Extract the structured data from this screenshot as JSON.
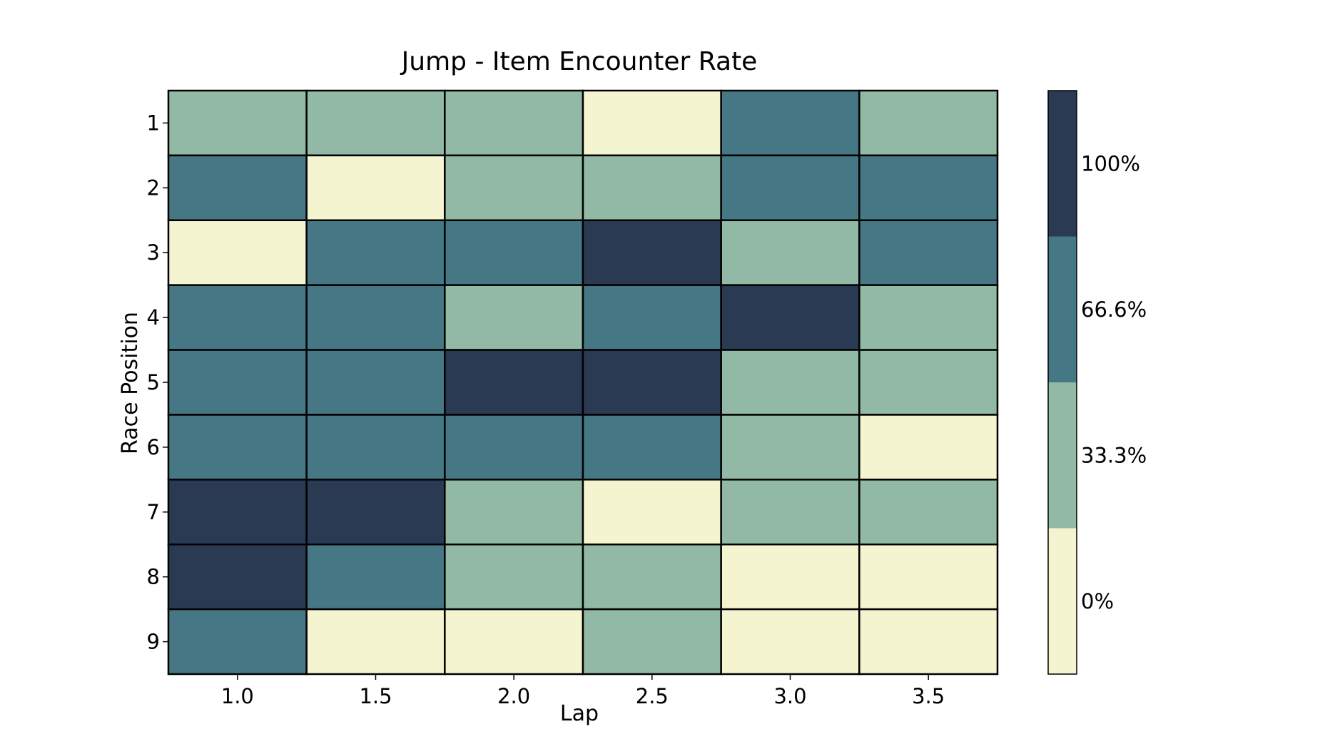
{
  "chart_data": {
    "type": "heatmap",
    "title": "Jump - Item Encounter Rate",
    "xlabel": "Lap",
    "ylabel": "Race Position",
    "x_categories": [
      "1.0",
      "1.5",
      "2.0",
      "2.5",
      "3.0",
      "3.5"
    ],
    "y_categories": [
      "1",
      "2",
      "3",
      "4",
      "5",
      "6",
      "7",
      "8",
      "9"
    ],
    "values": [
      [
        33.3,
        33.3,
        33.3,
        0,
        66.6,
        33.3
      ],
      [
        66.6,
        0,
        33.3,
        33.3,
        66.6,
        66.6
      ],
      [
        0,
        66.6,
        66.6,
        100,
        33.3,
        66.6
      ],
      [
        66.6,
        66.6,
        33.3,
        66.6,
        100,
        33.3
      ],
      [
        66.6,
        66.6,
        100,
        100,
        33.3,
        33.3
      ],
      [
        66.6,
        66.6,
        66.6,
        66.6,
        33.3,
        0
      ],
      [
        100,
        100,
        33.3,
        0,
        33.3,
        33.3
      ],
      [
        100,
        66.6,
        33.3,
        33.3,
        0,
        0
      ],
      [
        66.6,
        0,
        0,
        33.3,
        0,
        0
      ]
    ],
    "colorbar": {
      "levels": [
        0,
        33.3,
        66.6,
        100
      ],
      "tick_labels": [
        "0%",
        "33.3%",
        "66.6%",
        "100%"
      ],
      "colors": [
        "#f5f4d0",
        "#91b9a6",
        "#467784",
        "#2a3a52"
      ]
    },
    "grid": false,
    "legend": "colorbar-right"
  }
}
